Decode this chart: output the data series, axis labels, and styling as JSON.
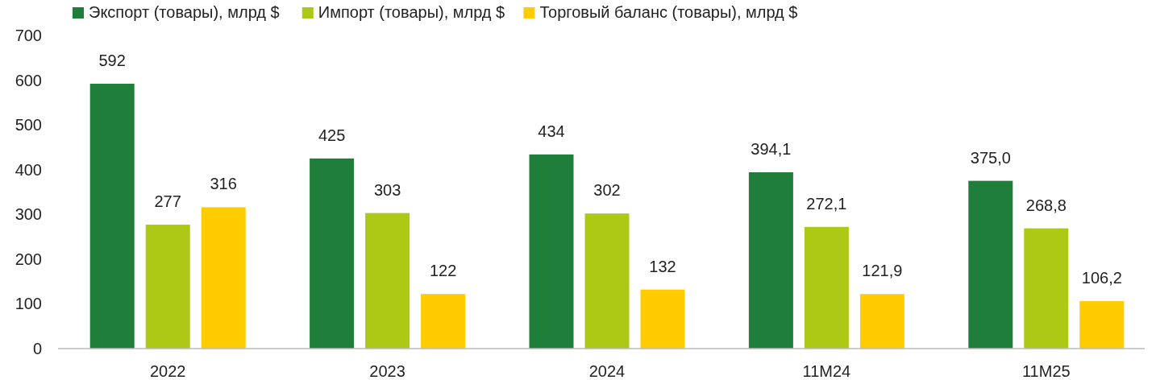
{
  "chart_data": {
    "type": "bar",
    "categories": [
      "2022",
      "2023",
      "2024",
      "11M24",
      "11M25"
    ],
    "series": [
      {
        "name": "Экспорт (товары), млрд $",
        "color": "#1f7f3a",
        "values": [
          592,
          425,
          434,
          394.1,
          375.0
        ],
        "value_labels": [
          "592",
          "425",
          "434",
          "394,1",
          "375,0"
        ]
      },
      {
        "name": "Импорт (товары), млрд $",
        "color": "#adc916",
        "values": [
          277,
          303,
          302,
          272.1,
          268.8
        ],
        "value_labels": [
          "277",
          "303",
          "302",
          "272,1",
          "268,8"
        ]
      },
      {
        "name": "Торговый баланс (товары), млрд $",
        "color": "#ffcc00",
        "values": [
          316,
          122,
          132,
          121.9,
          106.2
        ],
        "value_labels": [
          "316",
          "122",
          "132",
          "121,9",
          "106,2"
        ]
      }
    ],
    "ylim": [
      0,
      700
    ],
    "yticks": [
      0,
      100,
      200,
      300,
      400,
      500,
      600,
      700
    ],
    "grid": false,
    "legend": "top left"
  }
}
